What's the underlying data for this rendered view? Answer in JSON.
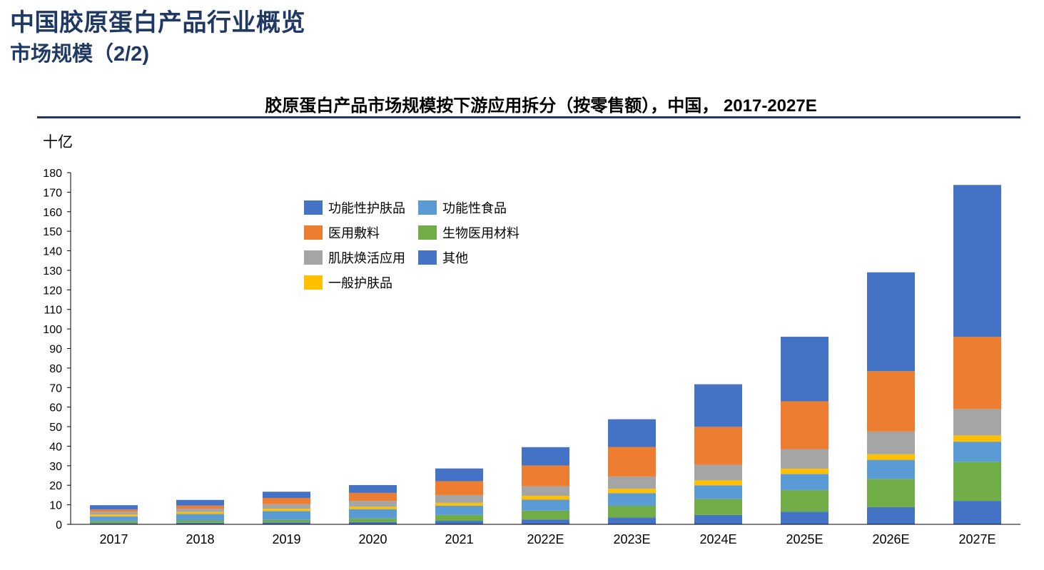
{
  "header": {
    "title": "中国胶原蛋白产品行业概览",
    "subtitle": "市场规模（2/2)"
  },
  "chart_data": {
    "type": "bar",
    "stacked": true,
    "title": "胶原蛋白产品市场规模按下游应用拆分（按零售额），中国， 2017-2027E",
    "unit": "十亿",
    "ylim": [
      0,
      180
    ],
    "y_ticks": [
      0,
      10,
      20,
      30,
      40,
      50,
      60,
      70,
      80,
      90,
      100,
      110,
      120,
      130,
      140,
      150,
      160,
      170,
      180
    ],
    "categories": [
      "2017",
      "2018",
      "2019",
      "2020",
      "2021",
      "2022E",
      "2023E",
      "2024E",
      "2025E",
      "2026E",
      "2027E"
    ],
    "series": [
      {
        "name": "其他",
        "color": "#4472C4",
        "values": [
          0.6,
          0.8,
          1.0,
          1.2,
          1.8,
          2.5,
          3.5,
          4.8,
          6.5,
          8.8,
          12.0
        ]
      },
      {
        "name": "生物医用材料",
        "color": "#70AD47",
        "values": [
          1.0,
          1.2,
          1.3,
          1.8,
          3.0,
          4.5,
          6.0,
          8.2,
          11.0,
          14.5,
          20.0
        ]
      },
      {
        "name": "功能性食品",
        "color": "#5B9BD5",
        "values": [
          2.5,
          3.3,
          4.5,
          4.8,
          4.7,
          5.6,
          6.5,
          7.0,
          8.3,
          9.7,
          10.3
        ]
      },
      {
        "name": "一般护肤品",
        "color": "#FFC000",
        "values": [
          0.9,
          1.0,
          1.2,
          1.2,
          1.5,
          2.0,
          2.2,
          2.5,
          2.7,
          2.9,
          3.2
        ]
      },
      {
        "name": "肌肤焕活应用",
        "color": "#A5A5A5",
        "values": [
          1.5,
          1.7,
          2.3,
          3.0,
          4.0,
          4.9,
          6.3,
          8.0,
          10.0,
          11.6,
          13.5
        ]
      },
      {
        "name": "医用敷料",
        "color": "#ED7D31",
        "values": [
          1.1,
          1.6,
          3.2,
          4.1,
          7.1,
          10.6,
          15.1,
          19.4,
          24.5,
          30.9,
          37.0
        ]
      },
      {
        "name": "功能性护肤品",
        "color": "#4472C4",
        "values": [
          2.2,
          2.9,
          3.2,
          4.0,
          6.5,
          9.4,
          14.2,
          21.8,
          33.0,
          50.6,
          77.7
        ]
      }
    ],
    "legend": {
      "position": "top-center",
      "order": [
        "功能性护肤品",
        "功能性食品",
        "医用敷料",
        "生物医用材料",
        "肌肤焕活应用",
        "其他",
        "一般护肤品"
      ]
    },
    "grid": false
  }
}
